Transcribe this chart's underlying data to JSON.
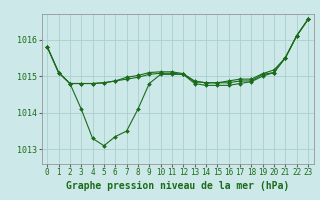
{
  "title": "Graphe pression niveau de la mer (hPa)",
  "background_color": "#cde8e8",
  "grid_color": "#aacfcf",
  "line_color": "#1a6b1a",
  "xlim": [
    -0.5,
    23.5
  ],
  "ylim": [
    1012.6,
    1016.7
  ],
  "yticks": [
    1013,
    1014,
    1015,
    1016
  ],
  "xticks": [
    0,
    1,
    2,
    3,
    4,
    5,
    6,
    7,
    8,
    9,
    10,
    11,
    12,
    13,
    14,
    15,
    16,
    17,
    18,
    19,
    20,
    21,
    22,
    23
  ],
  "series": [
    [
      1015.8,
      1015.1,
      1014.8,
      1014.1,
      1013.3,
      1013.1,
      1013.35,
      1013.5,
      1014.1,
      1014.8,
      1015.05,
      1015.05,
      1015.05,
      1014.8,
      1014.75,
      1014.75,
      1014.75,
      1014.8,
      1014.85,
      1015.0,
      1015.1,
      1015.5,
      1016.1,
      1016.55
    ],
    [
      1015.8,
      1015.1,
      1014.8,
      1014.8,
      1014.8,
      1014.82,
      1014.87,
      1014.92,
      1014.97,
      1015.05,
      1015.08,
      1015.08,
      1015.05,
      1014.85,
      1014.82,
      1014.82,
      1014.82,
      1014.87,
      1014.87,
      1015.05,
      1015.1,
      1015.5,
      1016.1,
      1016.55
    ],
    [
      1015.8,
      1015.1,
      1014.8,
      1014.8,
      1014.8,
      1014.82,
      1014.87,
      1014.97,
      1015.02,
      1015.1,
      1015.12,
      1015.12,
      1015.07,
      1014.87,
      1014.82,
      1014.82,
      1014.87,
      1014.92,
      1014.92,
      1015.07,
      1015.17,
      1015.5,
      1016.1,
      1016.55
    ]
  ],
  "title_fontsize": 7,
  "tick_fontsize": 5.5,
  "ylabel_fontsize": 6
}
